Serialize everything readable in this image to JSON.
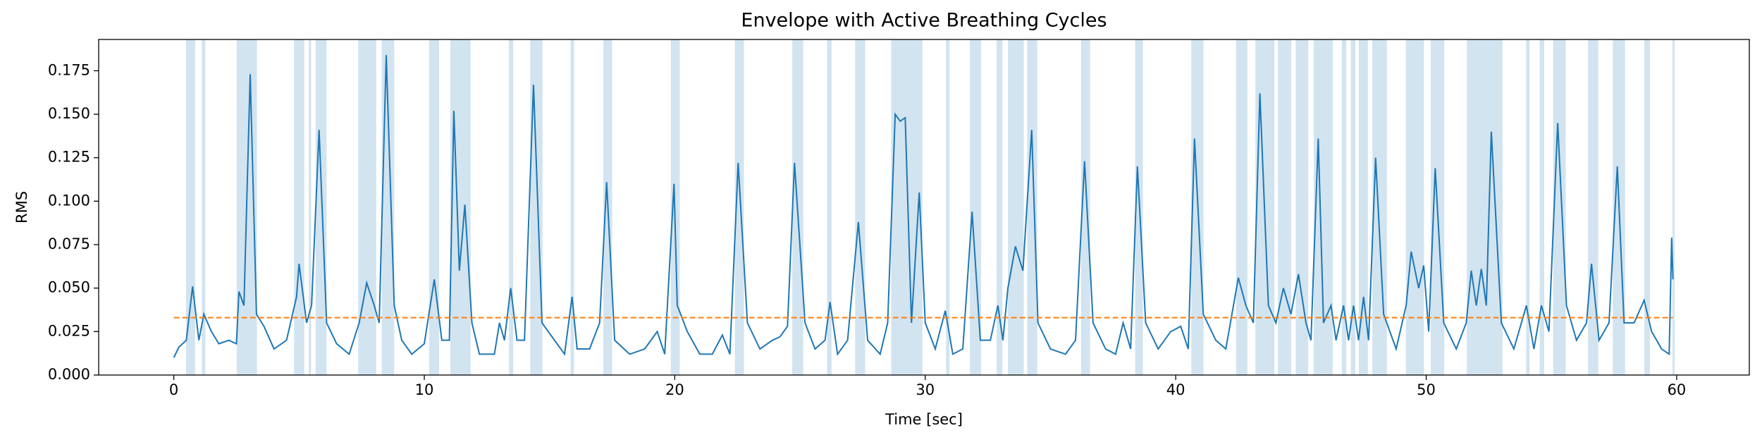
{
  "chart_data": {
    "type": "line",
    "title": "Envelope with Active Breathing Cycles",
    "x_label": "Time [sec]",
    "y_label": "RMS",
    "xlim": [
      -3,
      62.9
    ],
    "ylim": [
      0,
      0.193
    ],
    "xticks": [
      0,
      10,
      20,
      30,
      40,
      50,
      60
    ],
    "yticks": [
      {
        "value": 0,
        "label": "0.000"
      },
      {
        "value": 0.025,
        "label": "0.025"
      },
      {
        "value": 0.05,
        "label": "0.050"
      },
      {
        "value": 0.075,
        "label": "0.075"
      },
      {
        "value": 0.1,
        "label": "0.100"
      },
      {
        "value": 0.125,
        "label": "0.125"
      },
      {
        "value": 0.15,
        "label": "0.150"
      },
      {
        "value": 0.175,
        "label": "0.175"
      }
    ],
    "color": "#1f77b4",
    "x": [
      0,
      0.2,
      0.5,
      0.75,
      1.0,
      1.2,
      1.5,
      1.8,
      2.2,
      2.5,
      2.6,
      2.8,
      3.05,
      3.3,
      3.6,
      4.0,
      4.5,
      4.9,
      5.0,
      5.3,
      5.5,
      5.8,
      6.1,
      6.5,
      7.0,
      7.4,
      7.7,
      8.0,
      8.2,
      8.48,
      8.8,
      9.1,
      9.5,
      10.0,
      10.4,
      10.7,
      11.0,
      11.18,
      11.4,
      11.62,
      11.9,
      12.2,
      12.8,
      13.0,
      13.2,
      13.45,
      13.7,
      14.0,
      14.36,
      14.7,
      15.2,
      15.6,
      15.9,
      16.1,
      16.6,
      17.0,
      17.28,
      17.6,
      18.2,
      18.8,
      19.3,
      19.6,
      19.97,
      20.1,
      20.5,
      21.0,
      21.5,
      21.9,
      22.2,
      22.53,
      22.9,
      23.4,
      23.9,
      24.2,
      24.5,
      24.78,
      25.2,
      25.6,
      26.0,
      26.2,
      26.5,
      26.9,
      27.33,
      27.7,
      28.2,
      28.5,
      28.8,
      29.0,
      29.2,
      29.45,
      29.76,
      30.0,
      30.4,
      30.8,
      31.1,
      31.5,
      31.87,
      32.2,
      32.6,
      32.9,
      33.1,
      33.3,
      33.6,
      33.9,
      34.25,
      34.5,
      35.0,
      35.6,
      36.0,
      36.36,
      36.7,
      37.2,
      37.6,
      37.9,
      38.2,
      38.47,
      38.8,
      39.3,
      39.8,
      40.2,
      40.5,
      40.75,
      41.1,
      41.6,
      42.0,
      42.5,
      42.8,
      43.1,
      43.36,
      43.7,
      44.0,
      44.3,
      44.6,
      44.9,
      45.2,
      45.4,
      45.69,
      45.9,
      46.2,
      46.4,
      46.7,
      46.9,
      47.1,
      47.3,
      47.5,
      47.7,
      47.98,
      48.3,
      48.8,
      49.2,
      49.4,
      49.7,
      49.9,
      50.1,
      50.36,
      50.7,
      51.2,
      51.6,
      51.8,
      52.0,
      52.2,
      52.4,
      52.6,
      53.0,
      53.5,
      54.0,
      54.3,
      54.6,
      54.9,
      55.25,
      55.6,
      56.0,
      56.4,
      56.6,
      56.9,
      57.3,
      57.63,
      57.9,
      58.3,
      58.7,
      59.0,
      59.4,
      59.7,
      59.8,
      59.85
    ],
    "values": [
      0.01,
      0.016,
      0.02,
      0.051,
      0.02,
      0.035,
      0.025,
      0.018,
      0.02,
      0.018,
      0.048,
      0.04,
      0.173,
      0.035,
      0.028,
      0.015,
      0.02,
      0.045,
      0.064,
      0.03,
      0.04,
      0.141,
      0.03,
      0.018,
      0.012,
      0.03,
      0.053,
      0.04,
      0.03,
      0.184,
      0.04,
      0.02,
      0.012,
      0.018,
      0.055,
      0.02,
      0.02,
      0.152,
      0.06,
      0.098,
      0.03,
      0.012,
      0.012,
      0.03,
      0.02,
      0.05,
      0.02,
      0.02,
      0.167,
      0.03,
      0.02,
      0.012,
      0.045,
      0.015,
      0.015,
      0.03,
      0.111,
      0.02,
      0.012,
      0.015,
      0.025,
      0.012,
      0.11,
      0.04,
      0.025,
      0.012,
      0.012,
      0.023,
      0.012,
      0.122,
      0.03,
      0.015,
      0.02,
      0.022,
      0.028,
      0.122,
      0.03,
      0.015,
      0.02,
      0.042,
      0.012,
      0.02,
      0.088,
      0.02,
      0.012,
      0.03,
      0.15,
      0.146,
      0.148,
      0.03,
      0.105,
      0.03,
      0.015,
      0.037,
      0.012,
      0.015,
      0.094,
      0.02,
      0.02,
      0.04,
      0.02,
      0.05,
      0.074,
      0.06,
      0.141,
      0.03,
      0.015,
      0.012,
      0.02,
      0.123,
      0.03,
      0.015,
      0.012,
      0.03,
      0.015,
      0.12,
      0.03,
      0.015,
      0.025,
      0.028,
      0.015,
      0.136,
      0.035,
      0.02,
      0.015,
      0.056,
      0.04,
      0.03,
      0.162,
      0.04,
      0.03,
      0.05,
      0.035,
      0.058,
      0.03,
      0.02,
      0.136,
      0.03,
      0.04,
      0.02,
      0.04,
      0.02,
      0.04,
      0.02,
      0.045,
      0.02,
      0.125,
      0.035,
      0.015,
      0.04,
      0.071,
      0.05,
      0.063,
      0.025,
      0.119,
      0.03,
      0.015,
      0.03,
      0.06,
      0.04,
      0.061,
      0.04,
      0.14,
      0.03,
      0.015,
      0.04,
      0.015,
      0.04,
      0.025,
      0.145,
      0.04,
      0.02,
      0.03,
      0.064,
      0.02,
      0.03,
      0.12,
      0.03,
      0.03,
      0.043,
      0.025,
      0.015,
      0.012,
      0.079,
      0.055
    ],
    "threshold": {
      "value": 0.033,
      "color": "#ff7f0e"
    },
    "span_color": "#1f77b4",
    "spans": [
      [
        0.49,
        0.85
      ],
      [
        1.12,
        1.26
      ],
      [
        2.51,
        3.32
      ],
      [
        4.8,
        5.21
      ],
      [
        5.39,
        5.48
      ],
      [
        5.66,
        6.1
      ],
      [
        7.36,
        8.08
      ],
      [
        8.3,
        8.8
      ],
      [
        10.19,
        10.59
      ],
      [
        11.04,
        11.85
      ],
      [
        13.38,
        13.55
      ],
      [
        14.23,
        14.72
      ],
      [
        15.84,
        15.98
      ],
      [
        17.15,
        17.5
      ],
      [
        19.84,
        20.2
      ],
      [
        22.4,
        22.76
      ],
      [
        24.69,
        25.13
      ],
      [
        26.08,
        26.26
      ],
      [
        27.2,
        27.6
      ],
      [
        28.64,
        29.89
      ],
      [
        30.83,
        30.97
      ],
      [
        31.78,
        32.23
      ],
      [
        32.85,
        33.08
      ],
      [
        33.3,
        33.93
      ],
      [
        34.07,
        34.47
      ],
      [
        36.22,
        36.58
      ],
      [
        38.38,
        38.69
      ],
      [
        40.62,
        41.11
      ],
      [
        42.41,
        42.86
      ],
      [
        43.18,
        43.94
      ],
      [
        44.08,
        44.61
      ],
      [
        44.79,
        45.29
      ],
      [
        45.51,
        46.27
      ],
      [
        46.63,
        46.81
      ],
      [
        46.99,
        47.17
      ],
      [
        47.31,
        47.67
      ],
      [
        47.85,
        48.43
      ],
      [
        49.19,
        49.91
      ],
      [
        50.18,
        50.72
      ],
      [
        51.62,
        53.05
      ],
      [
        53.99,
        54.13
      ],
      [
        54.53,
        54.71
      ],
      [
        55.07,
        55.57
      ],
      [
        56.46,
        56.87
      ],
      [
        57.45,
        57.94
      ],
      [
        58.71,
        58.93
      ],
      [
        59.83,
        59.92
      ]
    ]
  }
}
